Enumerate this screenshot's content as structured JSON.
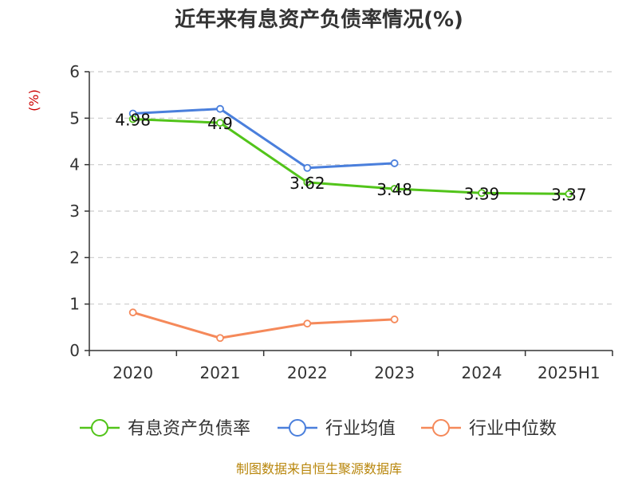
{
  "chart_data": {
    "type": "line",
    "title": "近年来有息资产负债率情况(%)",
    "ylabel": "(%)",
    "categories": [
      "2020",
      "2021",
      "2022",
      "2023",
      "2024",
      "2025H1"
    ],
    "ylim": [
      0,
      6
    ],
    "yticks": [
      "0",
      "1",
      "2",
      "3",
      "4",
      "5",
      "6"
    ],
    "grid": true,
    "legend_position": "bottom",
    "series": [
      {
        "name": "有息资产负债率",
        "color": "#52c41a",
        "values": [
          4.98,
          4.9,
          3.62,
          3.48,
          3.39,
          3.37
        ],
        "labels": [
          "4.98",
          "4.9",
          "3.62",
          "3.48",
          "3.39",
          "3.37"
        ]
      },
      {
        "name": "行业均值",
        "color": "#4a7fdc",
        "values": [
          5.1,
          5.2,
          3.93,
          4.03,
          null,
          null
        ]
      },
      {
        "name": "行业中位数",
        "color": "#f5895a",
        "values": [
          0.82,
          0.27,
          0.58,
          0.67,
          null,
          null
        ]
      }
    ]
  },
  "footer": {
    "source": "制图数据来自恒生聚源数据库"
  }
}
